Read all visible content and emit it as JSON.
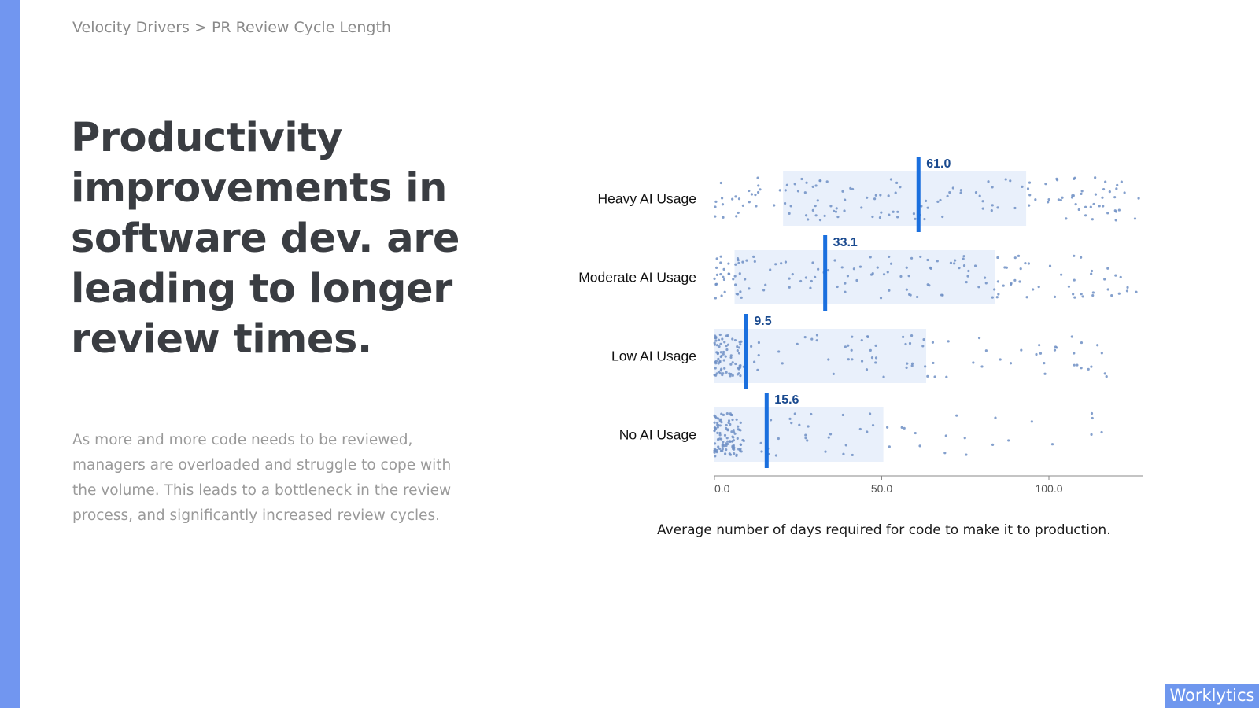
{
  "breadcrumb": "Velocity Drivers > PR Review Cycle Length",
  "headline": "Productivity improvements in software dev. are leading to longer review times.",
  "body": "As more and more code needs to be reviewed, managers are overloaded and struggle to cope with the volume. This leads to a bottleneck in the review process, and significantly increased review cycles.",
  "logo_text": "Worklytics",
  "colors": {
    "accent": "#7196f0",
    "median": "#1a6fde",
    "box": "#e9f0fb",
    "dots": "#6f8fc4",
    "median_label": "#1a4a8f"
  },
  "chart_data": {
    "type": "scatter",
    "subtype": "jitter-strip-with-iqr-box",
    "xlabel": "Average number of days required for code to make it to production.",
    "xlim": [
      0,
      128
    ],
    "xticks": [
      0,
      50,
      100
    ],
    "xtick_labels": [
      "0.0",
      "50.0",
      "100.0"
    ],
    "grid": false,
    "groups": [
      {
        "name": "Heavy AI Usage",
        "median": 61.0,
        "median_label": "61.0",
        "q1": 20.5,
        "q3": 93.2,
        "spread": [
          0,
          127
        ]
      },
      {
        "name": "Moderate AI Usage",
        "median": 33.1,
        "median_label": "33.1",
        "q1": 6,
        "q3": 84,
        "spread": [
          0,
          128
        ]
      },
      {
        "name": "Low AI Usage",
        "median": 9.5,
        "median_label": "9.5",
        "q1": 0,
        "q3": 63.3,
        "spread": [
          0,
          119
        ]
      },
      {
        "name": "No AI Usage",
        "median": 15.6,
        "median_label": "15.6",
        "q1": 0,
        "q3": 50.5,
        "spread": [
          0,
          119
        ]
      }
    ]
  }
}
